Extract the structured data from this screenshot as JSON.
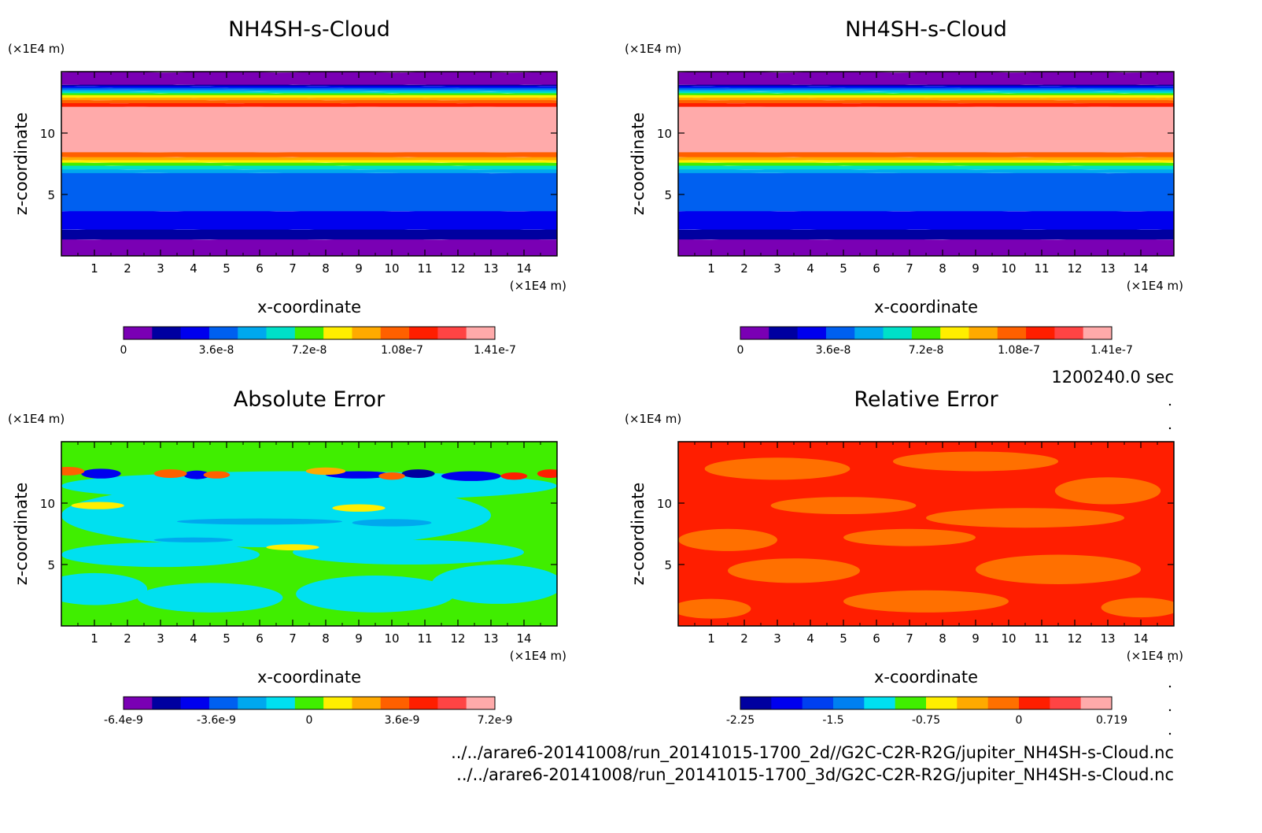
{
  "time_label": "1200240.0 sec",
  "footer_paths": [
    "../../arare6-20141008/run_20141015-1700_2d//G2C-C2R-R2G/jupiter_NH4SH-s-Cloud.nc",
    "../../arare6-20141008/run_20141015-1700_3d/G2C-C2R-R2G/jupiter_NH4SH-s-Cloud.nc"
  ],
  "chart_data": [
    {
      "type": "heatmap",
      "title": "NH4SH-s-Cloud",
      "xlabel": "x-coordinate",
      "ylabel": "z-coordinate",
      "x_unit": "(×1E4 m)",
      "y_unit": "(×1E4 m)",
      "xlim": [
        0,
        15
      ],
      "ylim": [
        0,
        15
      ],
      "x_ticks": [
        "1",
        "2",
        "3",
        "4",
        "5",
        "6",
        "7",
        "8",
        "9",
        "10",
        "11",
        "12",
        "13",
        "14"
      ],
      "y_ticks": [
        "5",
        "10"
      ],
      "colorbar": {
        "tick_labels": [
          "0",
          "3.6e-8",
          "7.2e-8",
          "1.08e-7",
          "1.41e-7"
        ],
        "colors": [
          "#7a00b4",
          "#0000a0",
          "#0000ee",
          "#0060f0",
          "#00a8ee",
          "#00e0c8",
          "#40ee00",
          "#ffee00",
          "#ffaa00",
          "#ff6000",
          "#ff1e00",
          "#ff4444",
          "#ffaaaa"
        ]
      },
      "bands_z": [
        {
          "z": [
            0.0,
            1.4
          ],
          "level": 0
        },
        {
          "z": [
            1.4,
            2.2
          ],
          "level": 1
        },
        {
          "z": [
            2.2,
            3.7
          ],
          "level": 2
        },
        {
          "z": [
            3.7,
            6.8
          ],
          "level": 3
        },
        {
          "z": [
            6.8,
            7.1
          ],
          "level": 4
        },
        {
          "z": [
            7.1,
            7.4
          ],
          "level": 5
        },
        {
          "z": [
            7.4,
            7.65
          ],
          "level": 6
        },
        {
          "z": [
            7.65,
            7.85
          ],
          "level": 7
        },
        {
          "z": [
            7.85,
            8.1
          ],
          "level": 8
        },
        {
          "z": [
            8.1,
            8.5
          ],
          "level": 9
        },
        {
          "z": [
            8.5,
            12.2
          ],
          "level": 12
        },
        {
          "z": [
            12.2,
            12.5
          ],
          "level": 10
        },
        {
          "z": [
            12.5,
            12.75
          ],
          "level": 9
        },
        {
          "z": [
            12.75,
            12.95
          ],
          "level": 8
        },
        {
          "z": [
            12.95,
            13.15
          ],
          "level": 7
        },
        {
          "z": [
            13.15,
            13.3
          ],
          "level": 6
        },
        {
          "z": [
            13.3,
            13.45
          ],
          "level": 5
        },
        {
          "z": [
            13.45,
            13.6
          ],
          "level": 4
        },
        {
          "z": [
            13.6,
            13.75
          ],
          "level": 3
        },
        {
          "z": [
            13.75,
            13.9
          ],
          "level": 2
        },
        {
          "z": [
            13.9,
            14.0
          ],
          "level": 1
        },
        {
          "z": [
            14.0,
            15.0
          ],
          "level": 0
        }
      ]
    },
    {
      "type": "heatmap",
      "title": "NH4SH-s-Cloud",
      "xlabel": "x-coordinate",
      "ylabel": "z-coordinate",
      "x_unit": "(×1E4 m)",
      "y_unit": "(×1E4 m)",
      "xlim": [
        0,
        15
      ],
      "ylim": [
        0,
        15
      ],
      "x_ticks": [
        "1",
        "2",
        "3",
        "4",
        "5",
        "6",
        "7",
        "8",
        "9",
        "10",
        "11",
        "12",
        "13",
        "14"
      ],
      "y_ticks": [
        "5",
        "10"
      ],
      "colorbar": {
        "tick_labels": [
          "0",
          "3.6e-8",
          "7.2e-8",
          "1.08e-7",
          "1.41e-7"
        ],
        "colors": [
          "#7a00b4",
          "#0000a0",
          "#0000ee",
          "#0060f0",
          "#00a8ee",
          "#00e0c8",
          "#40ee00",
          "#ffee00",
          "#ffaa00",
          "#ff6000",
          "#ff1e00",
          "#ff4444",
          "#ffaaaa"
        ]
      },
      "bands_z": [
        {
          "z": [
            0.0,
            1.4
          ],
          "level": 0
        },
        {
          "z": [
            1.4,
            2.2
          ],
          "level": 1
        },
        {
          "z": [
            2.2,
            3.7
          ],
          "level": 2
        },
        {
          "z": [
            3.7,
            6.8
          ],
          "level": 3
        },
        {
          "z": [
            6.8,
            7.1
          ],
          "level": 4
        },
        {
          "z": [
            7.1,
            7.4
          ],
          "level": 5
        },
        {
          "z": [
            7.4,
            7.65
          ],
          "level": 6
        },
        {
          "z": [
            7.65,
            7.85
          ],
          "level": 7
        },
        {
          "z": [
            7.85,
            8.1
          ],
          "level": 8
        },
        {
          "z": [
            8.1,
            8.5
          ],
          "level": 9
        },
        {
          "z": [
            8.5,
            12.2
          ],
          "level": 12
        },
        {
          "z": [
            12.2,
            12.5
          ],
          "level": 10
        },
        {
          "z": [
            12.5,
            12.75
          ],
          "level": 9
        },
        {
          "z": [
            12.75,
            12.95
          ],
          "level": 8
        },
        {
          "z": [
            12.95,
            13.15
          ],
          "level": 7
        },
        {
          "z": [
            13.15,
            13.3
          ],
          "level": 6
        },
        {
          "z": [
            13.3,
            13.45
          ],
          "level": 5
        },
        {
          "z": [
            13.45,
            13.6
          ],
          "level": 4
        },
        {
          "z": [
            13.6,
            13.75
          ],
          "level": 3
        },
        {
          "z": [
            13.75,
            13.9
          ],
          "level": 2
        },
        {
          "z": [
            13.9,
            14.0
          ],
          "level": 1
        },
        {
          "z": [
            14.0,
            15.0
          ],
          "level": 0
        }
      ]
    },
    {
      "type": "heatmap",
      "title": "Absolute Error",
      "xlabel": "x-coordinate",
      "ylabel": "z-coordinate",
      "x_unit": "(×1E4 m)",
      "y_unit": "(×1E4 m)",
      "xlim": [
        0,
        15
      ],
      "ylim": [
        0,
        15
      ],
      "x_ticks": [
        "1",
        "2",
        "3",
        "4",
        "5",
        "6",
        "7",
        "8",
        "9",
        "10",
        "11",
        "12",
        "13",
        "14"
      ],
      "y_ticks": [
        "5",
        "10"
      ],
      "colorbar": {
        "tick_labels": [
          "-6.4e-9",
          "-3.6e-9",
          "0",
          "3.6e-9",
          "7.2e-9"
        ],
        "colors": [
          "#7a00b4",
          "#0000a0",
          "#0000ee",
          "#0060f0",
          "#00a8ee",
          "#00e0f0",
          "#40ee00",
          "#ffee00",
          "#ffaa00",
          "#ff6000",
          "#ff1e00",
          "#ff4444",
          "#ffaaaa"
        ]
      },
      "background_level": 6,
      "patches": [
        {
          "x": 1.0,
          "z": 3.0,
          "rx": 1.6,
          "rz": 1.3,
          "level": 5
        },
        {
          "x": 4.5,
          "z": 2.3,
          "rx": 2.2,
          "rz": 1.2,
          "level": 5
        },
        {
          "x": 9.5,
          "z": 2.6,
          "rx": 2.4,
          "rz": 1.5,
          "level": 5
        },
        {
          "x": 13.2,
          "z": 3.4,
          "rx": 2.0,
          "rz": 1.6,
          "level": 5
        },
        {
          "x": 3.0,
          "z": 5.8,
          "rx": 3.0,
          "rz": 1.0,
          "level": 5
        },
        {
          "x": 10.5,
          "z": 6.0,
          "rx": 3.5,
          "rz": 1.0,
          "level": 5
        },
        {
          "x": 6.5,
          "z": 9.0,
          "rx": 6.5,
          "rz": 2.6,
          "level": 5
        },
        {
          "x": 7.5,
          "z": 11.4,
          "rx": 7.5,
          "rz": 1.2,
          "level": 5
        },
        {
          "x": 7.0,
          "z": 6.4,
          "rx": 0.8,
          "rz": 0.25,
          "level": 7
        },
        {
          "x": 1.1,
          "z": 9.8,
          "rx": 0.8,
          "rz": 0.3,
          "level": 7
        },
        {
          "x": 9.0,
          "z": 9.6,
          "rx": 0.8,
          "rz": 0.3,
          "level": 7
        },
        {
          "x": 6.0,
          "z": 8.5,
          "rx": 2.5,
          "rz": 0.25,
          "level": 4
        },
        {
          "x": 10.0,
          "z": 8.4,
          "rx": 1.2,
          "rz": 0.3,
          "level": 4
        },
        {
          "x": 4.0,
          "z": 7.0,
          "rx": 1.2,
          "rz": 0.2,
          "level": 4
        },
        {
          "x": 1.2,
          "z": 12.4,
          "rx": 0.6,
          "rz": 0.4,
          "level": 2
        },
        {
          "x": 4.1,
          "z": 12.3,
          "rx": 0.4,
          "rz": 0.35,
          "level": 2
        },
        {
          "x": 9.0,
          "z": 12.3,
          "rx": 1.0,
          "rz": 0.3,
          "level": 2
        },
        {
          "x": 10.8,
          "z": 12.4,
          "rx": 0.5,
          "rz": 0.35,
          "level": 1
        },
        {
          "x": 12.4,
          "z": 12.2,
          "rx": 0.9,
          "rz": 0.4,
          "level": 2
        },
        {
          "x": 0.2,
          "z": 12.6,
          "rx": 0.5,
          "rz": 0.35,
          "level": 9
        },
        {
          "x": 3.3,
          "z": 12.4,
          "rx": 0.5,
          "rz": 0.35,
          "level": 9
        },
        {
          "x": 4.7,
          "z": 12.3,
          "rx": 0.4,
          "rz": 0.3,
          "level": 9
        },
        {
          "x": 8.0,
          "z": 12.6,
          "rx": 0.6,
          "rz": 0.3,
          "level": 8
        },
        {
          "x": 10.0,
          "z": 12.2,
          "rx": 0.4,
          "rz": 0.3,
          "level": 9
        },
        {
          "x": 13.7,
          "z": 12.2,
          "rx": 0.4,
          "rz": 0.3,
          "level": 10
        },
        {
          "x": 14.8,
          "z": 12.4,
          "rx": 0.4,
          "rz": 0.35,
          "level": 10
        }
      ]
    },
    {
      "type": "heatmap",
      "title": "Relative Error",
      "xlabel": "x-coordinate",
      "ylabel": "z-coordinate",
      "x_unit": "(×1E4 m)",
      "y_unit": "(×1E4 m)",
      "xlim": [
        0,
        15
      ],
      "ylim": [
        0,
        15
      ],
      "x_ticks": [
        "1",
        "2",
        "3",
        "4",
        "5",
        "6",
        "7",
        "8",
        "9",
        "10",
        "11",
        "12",
        "13",
        "14"
      ],
      "y_ticks": [
        "5",
        "10"
      ],
      "colorbar": {
        "tick_labels": [
          "-2.25",
          "-1.5",
          "-0.75",
          "0",
          "0.719"
        ],
        "colors": [
          "#0000a0",
          "#0000ee",
          "#0040f0",
          "#0080f0",
          "#00e0f0",
          "#40ee00",
          "#ffee00",
          "#ffaa00",
          "#ff7000",
          "#ff1e00",
          "#ff4444",
          "#ffaaaa"
        ]
      },
      "background_level": 9,
      "patches": [
        {
          "x": 3.0,
          "z": 12.8,
          "rx": 2.2,
          "rz": 0.9,
          "level": 8
        },
        {
          "x": 9.0,
          "z": 13.4,
          "rx": 2.5,
          "rz": 0.8,
          "level": 8
        },
        {
          "x": 13.0,
          "z": 11.0,
          "rx": 1.6,
          "rz": 1.1,
          "level": 8
        },
        {
          "x": 5.0,
          "z": 9.8,
          "rx": 2.2,
          "rz": 0.7,
          "level": 8
        },
        {
          "x": 10.5,
          "z": 8.8,
          "rx": 3.0,
          "rz": 0.8,
          "level": 8
        },
        {
          "x": 1.5,
          "z": 7.0,
          "rx": 1.5,
          "rz": 0.9,
          "level": 8
        },
        {
          "x": 7.0,
          "z": 7.2,
          "rx": 2.0,
          "rz": 0.7,
          "level": 8
        },
        {
          "x": 3.5,
          "z": 4.5,
          "rx": 2.0,
          "rz": 1.0,
          "level": 8
        },
        {
          "x": 11.5,
          "z": 4.6,
          "rx": 2.5,
          "rz": 1.2,
          "level": 8
        },
        {
          "x": 7.5,
          "z": 2.0,
          "rx": 2.5,
          "rz": 0.9,
          "level": 8
        },
        {
          "x": 14.0,
          "z": 1.5,
          "rx": 1.2,
          "rz": 0.8,
          "level": 8
        },
        {
          "x": 1.0,
          "z": 1.4,
          "rx": 1.2,
          "rz": 0.8,
          "level": 8
        }
      ]
    }
  ]
}
